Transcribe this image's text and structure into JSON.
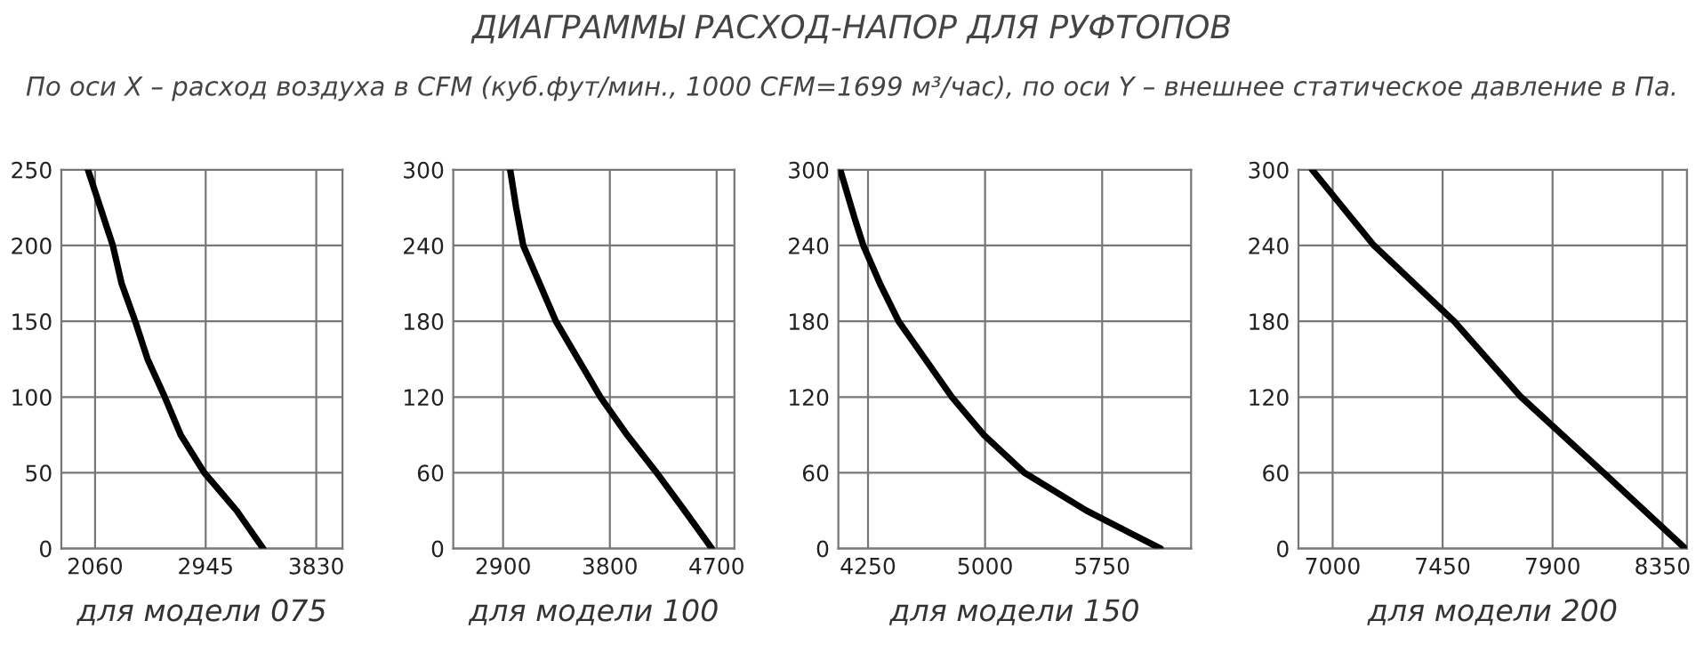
{
  "chart_data": [
    {
      "type": "line",
      "subtitle": "По оси X – расход воздуха в CFM (куб.фут/мин., 1000 CFM=1699 м³/час), по оси Y – внешнее статическое давление в Па.",
      "xlabel": "для модели 075",
      "series": [
        {
          "color": "#000000",
          "x": [
            2003,
            2202,
            2272,
            2381,
            2480,
            2618,
            2745,
            2934,
            3193,
            3405
          ],
          "values": [
            250,
            200,
            175,
            150,
            125,
            100,
            75,
            50,
            25,
            0
          ]
        }
      ],
      "xlim": [
        1790,
        4040
      ],
      "xticks": [
        2060,
        2945,
        3830
      ],
      "ylim": [
        0,
        250
      ],
      "yticks": [
        0,
        50,
        100,
        150,
        200,
        250
      ],
      "grid": true,
      "marker": "none",
      "line_style": "solid"
    },
    {
      "type": "line",
      "xlabel": "для модели 100",
      "series": [
        {
          "color": "#000000",
          "x": [
            2960,
            3010,
            3070,
            3345,
            3720,
            3945,
            4195,
            4430,
            4660
          ],
          "values": [
            300,
            270,
            240,
            180,
            120,
            90,
            60,
            30,
            0
          ]
        }
      ],
      "xlim": [
        2480,
        4850
      ],
      "xticks": [
        2900,
        3800,
        4700
      ],
      "ylim": [
        0,
        300
      ],
      "yticks": [
        0,
        60,
        120,
        180,
        240,
        300
      ],
      "grid": true,
      "marker": "none",
      "line_style": "solid"
    },
    {
      "type": "line",
      "title": "ДИАГРАММЫ РАСХОД-НАПОР ДЛЯ РУФТОПОВ",
      "xlabel": "для модели 150",
      "series": [
        {
          "color": "#000000",
          "x": [
            4072,
            4163,
            4220,
            4326,
            4446,
            4787,
            4992,
            5252,
            5650,
            6124
          ],
          "values": [
            300,
            262,
            240,
            210,
            180,
            120,
            90,
            60,
            30,
            0
          ]
        }
      ],
      "xlim": [
        4060,
        6320
      ],
      "xticks": [
        4250,
        5000,
        5750
      ],
      "ylim": [
        0,
        300
      ],
      "yticks": [
        0,
        60,
        120,
        180,
        240,
        300
      ],
      "grid": true,
      "marker": "none",
      "line_style": "solid"
    },
    {
      "type": "line",
      "xlabel": "для модели 200",
      "series": [
        {
          "color": "#000000",
          "x": [
            6916,
            7169,
            7497,
            7771,
            8109,
            8443
          ],
          "values": [
            300,
            240,
            180,
            120,
            60,
            0
          ]
        }
      ],
      "xlim": [
        6860,
        8450
      ],
      "xticks": [
        7000,
        7450,
        7900,
        8350
      ],
      "ylim": [
        0,
        300
      ],
      "yticks": [
        0,
        60,
        120,
        180,
        240,
        300
      ],
      "grid": true,
      "marker": "none",
      "line_style": "solid"
    }
  ]
}
